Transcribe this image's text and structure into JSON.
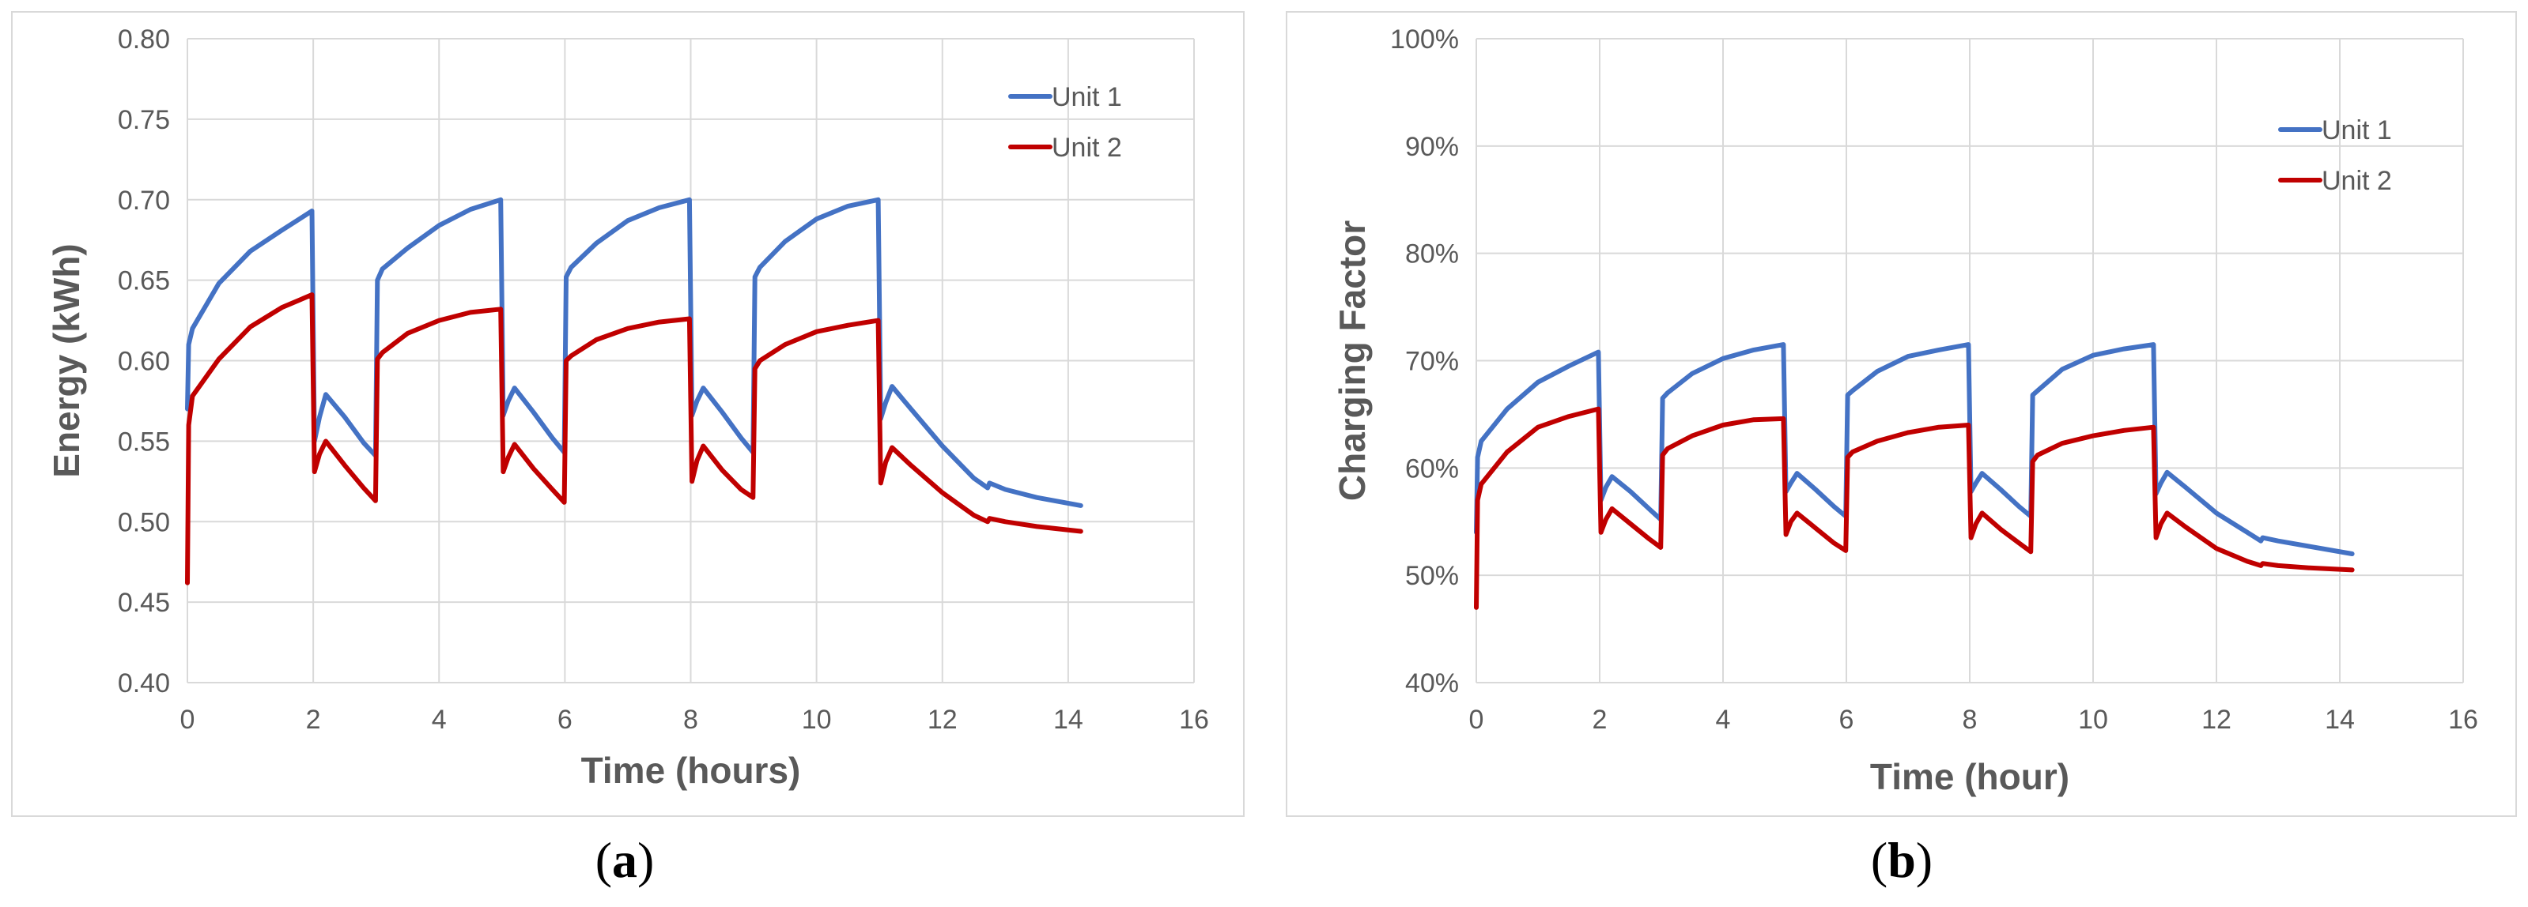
{
  "colors": {
    "unit1": "#4472C4",
    "unit2": "#C00000",
    "grid": "#d9d9d9",
    "text": "#595959"
  },
  "captions": {
    "a_open": "(",
    "a_letter": "a",
    "a_close": ")",
    "b_open": "(",
    "b_letter": "b",
    "b_close": ")"
  },
  "chart_data": [
    {
      "id": "a",
      "type": "line",
      "xlabel": "Time (hours)",
      "ylabel": "Energy (kWh)",
      "xlim": [
        0,
        16
      ],
      "ylim": [
        0.4,
        0.8
      ],
      "xticks": [
        0,
        2,
        4,
        6,
        8,
        10,
        12,
        14,
        16
      ],
      "xtick_labels": [
        "0",
        "2",
        "4",
        "6",
        "8",
        "10",
        "12",
        "14",
        "16"
      ],
      "yticks": [
        0.4,
        0.45,
        0.5,
        0.55,
        0.6,
        0.65,
        0.7,
        0.75,
        0.8
      ],
      "ytick_labels": [
        "0.40",
        "0.45",
        "0.50",
        "0.55",
        "0.60",
        "0.65",
        "0.70",
        "0.75",
        "0.80"
      ],
      "grid": true,
      "legend_position": "top-right",
      "series": [
        {
          "name": "Unit 1",
          "x": [
            0,
            0.02,
            0.08,
            0.5,
            1.0,
            1.5,
            1.98,
            2.02,
            2.1,
            2.2,
            2.5,
            2.8,
            2.99,
            3.02,
            3.1,
            3.5,
            4.0,
            4.5,
            4.98,
            5.02,
            5.1,
            5.2,
            5.5,
            5.8,
            5.99,
            6.02,
            6.1,
            6.5,
            7.0,
            7.5,
            7.98,
            8.02,
            8.1,
            8.2,
            8.5,
            8.8,
            8.99,
            9.02,
            9.1,
            9.5,
            10.0,
            10.5,
            10.98,
            11.02,
            11.1,
            11.2,
            11.5,
            12.0,
            12.5,
            12.72,
            12.75,
            13.0,
            13.5,
            14.2
          ],
          "y": [
            0.57,
            0.61,
            0.62,
            0.648,
            0.668,
            0.681,
            0.693,
            0.55,
            0.565,
            0.579,
            0.565,
            0.549,
            0.541,
            0.65,
            0.657,
            0.67,
            0.684,
            0.694,
            0.7,
            0.566,
            0.575,
            0.583,
            0.568,
            0.552,
            0.543,
            0.652,
            0.658,
            0.673,
            0.687,
            0.695,
            0.7,
            0.566,
            0.575,
            0.583,
            0.568,
            0.552,
            0.543,
            0.652,
            0.658,
            0.674,
            0.688,
            0.696,
            0.7,
            0.564,
            0.574,
            0.584,
            0.57,
            0.547,
            0.527,
            0.521,
            0.524,
            0.52,
            0.515,
            0.51
          ]
        },
        {
          "name": "Unit 2",
          "x": [
            0,
            0.02,
            0.08,
            0.5,
            1.0,
            1.5,
            1.98,
            2.02,
            2.1,
            2.2,
            2.5,
            2.8,
            2.99,
            3.02,
            3.1,
            3.5,
            4.0,
            4.5,
            4.98,
            5.02,
            5.1,
            5.2,
            5.5,
            5.8,
            5.99,
            6.02,
            6.1,
            6.5,
            7.0,
            7.5,
            7.98,
            8.02,
            8.1,
            8.2,
            8.5,
            8.8,
            8.99,
            9.02,
            9.1,
            9.5,
            10.0,
            10.5,
            10.98,
            11.02,
            11.1,
            11.2,
            11.5,
            12.0,
            12.5,
            12.72,
            12.75,
            13.0,
            13.5,
            14.2
          ],
          "y": [
            0.462,
            0.56,
            0.578,
            0.601,
            0.621,
            0.633,
            0.641,
            0.531,
            0.542,
            0.55,
            0.535,
            0.521,
            0.513,
            0.601,
            0.605,
            0.617,
            0.625,
            0.63,
            0.632,
            0.531,
            0.54,
            0.548,
            0.533,
            0.52,
            0.512,
            0.6,
            0.603,
            0.613,
            0.62,
            0.624,
            0.626,
            0.525,
            0.538,
            0.547,
            0.532,
            0.52,
            0.515,
            0.595,
            0.6,
            0.61,
            0.618,
            0.622,
            0.625,
            0.524,
            0.537,
            0.546,
            0.535,
            0.518,
            0.504,
            0.5,
            0.502,
            0.5,
            0.497,
            0.494
          ]
        }
      ]
    },
    {
      "id": "b",
      "type": "line",
      "xlabel": "Time (hour)",
      "ylabel": "Charging Factor",
      "xlim": [
        0,
        16
      ],
      "ylim": [
        40,
        100
      ],
      "xticks": [
        0,
        2,
        4,
        6,
        8,
        10,
        12,
        14,
        16
      ],
      "xtick_labels": [
        "0",
        "2",
        "4",
        "6",
        "8",
        "10",
        "12",
        "14",
        "16"
      ],
      "yticks": [
        40,
        50,
        60,
        70,
        80,
        90,
        100
      ],
      "ytick_labels": [
        "40%",
        "50%",
        "60%",
        "70%",
        "80%",
        "90%",
        "100%"
      ],
      "grid": true,
      "legend_position": "top-right",
      "series": [
        {
          "name": "Unit 1",
          "x": [
            0,
            0.02,
            0.08,
            0.5,
            1.0,
            1.5,
            1.98,
            2.02,
            2.1,
            2.2,
            2.5,
            2.8,
            2.99,
            3.02,
            3.1,
            3.5,
            4.0,
            4.5,
            4.98,
            5.02,
            5.1,
            5.2,
            5.5,
            5.8,
            5.99,
            6.02,
            6.1,
            6.5,
            7.0,
            7.5,
            7.98,
            8.02,
            8.1,
            8.2,
            8.5,
            8.8,
            8.99,
            9.02,
            9.1,
            9.5,
            10.0,
            10.5,
            10.98,
            11.02,
            11.1,
            11.2,
            11.5,
            12.0,
            12.5,
            12.72,
            12.75,
            13.0,
            13.5,
            14.2
          ],
          "y": [
            54,
            61,
            62.5,
            65.5,
            68,
            69.5,
            70.8,
            57,
            58.2,
            59.2,
            57.8,
            56.2,
            55.2,
            66.5,
            67,
            68.8,
            70.2,
            71.0,
            71.5,
            57.8,
            58.6,
            59.5,
            58.0,
            56.4,
            55.5,
            66.8,
            67.2,
            69.0,
            70.4,
            71.0,
            71.5,
            57.8,
            58.6,
            59.5,
            58.0,
            56.4,
            55.5,
            66.8,
            67.2,
            69.2,
            70.5,
            71.1,
            71.5,
            57.6,
            58.6,
            59.6,
            58.2,
            55.8,
            54.0,
            53.2,
            53.5,
            53.2,
            52.7,
            52.0
          ]
        },
        {
          "name": "Unit 2",
          "x": [
            0,
            0.02,
            0.08,
            0.5,
            1.0,
            1.5,
            1.98,
            2.02,
            2.1,
            2.2,
            2.5,
            2.8,
            2.99,
            3.02,
            3.1,
            3.5,
            4.0,
            4.5,
            4.98,
            5.02,
            5.1,
            5.2,
            5.5,
            5.8,
            5.99,
            6.02,
            6.1,
            6.5,
            7.0,
            7.5,
            7.98,
            8.02,
            8.1,
            8.2,
            8.5,
            8.8,
            8.99,
            9.02,
            9.1,
            9.5,
            10.0,
            10.5,
            10.98,
            11.02,
            11.1,
            11.2,
            11.5,
            12.0,
            12.5,
            12.72,
            12.75,
            13.0,
            13.5,
            14.2
          ],
          "y": [
            47,
            57,
            58.5,
            61.5,
            63.8,
            64.8,
            65.5,
            54.0,
            55.2,
            56.2,
            54.8,
            53.4,
            52.6,
            61.2,
            61.8,
            63.0,
            64.0,
            64.5,
            64.6,
            53.8,
            55.0,
            55.8,
            54.4,
            53.0,
            52.3,
            61.0,
            61.5,
            62.5,
            63.3,
            63.8,
            64.0,
            53.5,
            54.8,
            55.8,
            54.3,
            53.0,
            52.2,
            60.6,
            61.2,
            62.3,
            63.0,
            63.5,
            63.8,
            53.5,
            54.8,
            55.8,
            54.5,
            52.5,
            51.3,
            50.9,
            51.1,
            50.9,
            50.7,
            50.5
          ]
        }
      ]
    }
  ]
}
